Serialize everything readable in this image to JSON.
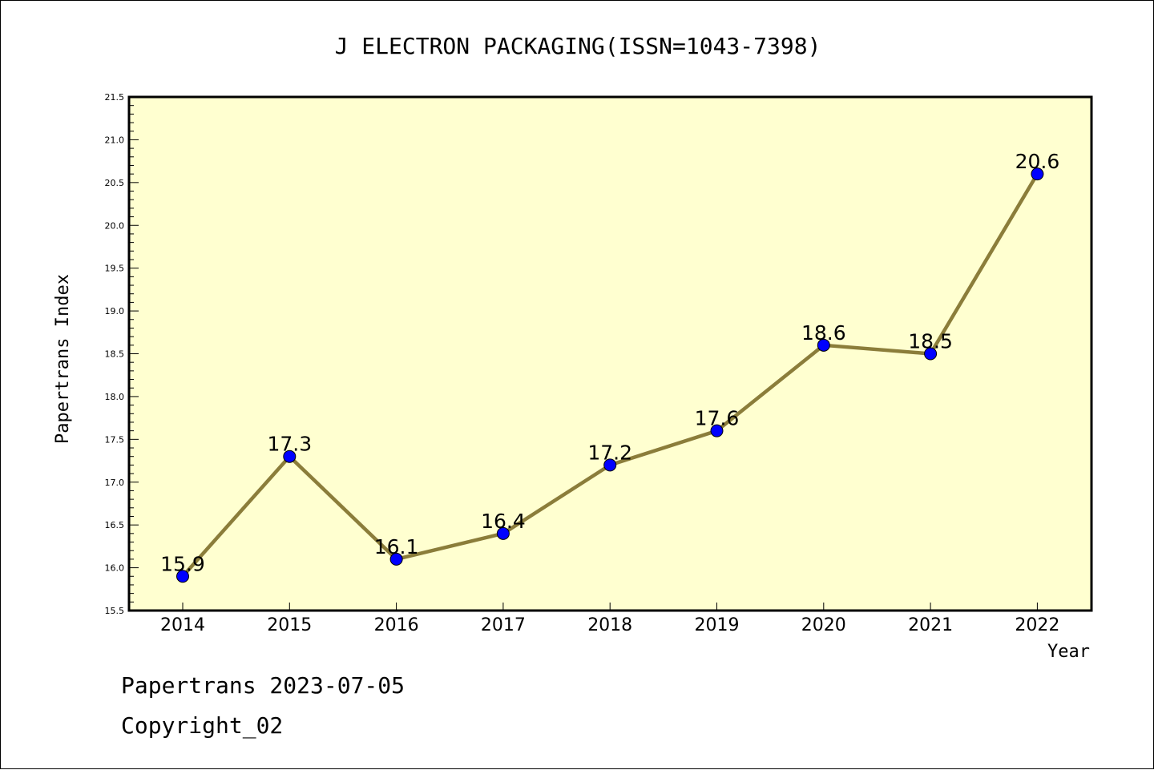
{
  "chart_data": {
    "type": "line",
    "title": "J ELECTRON PACKAGING(ISSN=1043-7398)",
    "xlabel": "Year",
    "ylabel": "Papertrans Index",
    "categories": [
      "2014",
      "2015",
      "2016",
      "2017",
      "2018",
      "2019",
      "2020",
      "2021",
      "2022"
    ],
    "values": [
      15.9,
      17.3,
      16.1,
      16.4,
      17.2,
      17.6,
      18.6,
      18.5,
      20.6
    ],
    "data_labels": [
      "15.9",
      "17.3",
      "16.1",
      "16.4",
      "17.2",
      "17.6",
      "18.6",
      "18.5",
      "20.6"
    ],
    "ylim": [
      15.5,
      21.5
    ],
    "yticks": [
      "15.5",
      "16.0",
      "16.5",
      "17.0",
      "17.5",
      "18.0",
      "18.5",
      "19.0",
      "19.5",
      "20.0",
      "20.5",
      "21.0",
      "21.5"
    ],
    "grid": false,
    "colors": {
      "line": "#8b7d3a",
      "marker": "#0000ff",
      "plot_background": "#ffffd0"
    }
  },
  "footer": {
    "line1": "Papertrans 2023-07-05",
    "line2": "Copyright_02"
  }
}
